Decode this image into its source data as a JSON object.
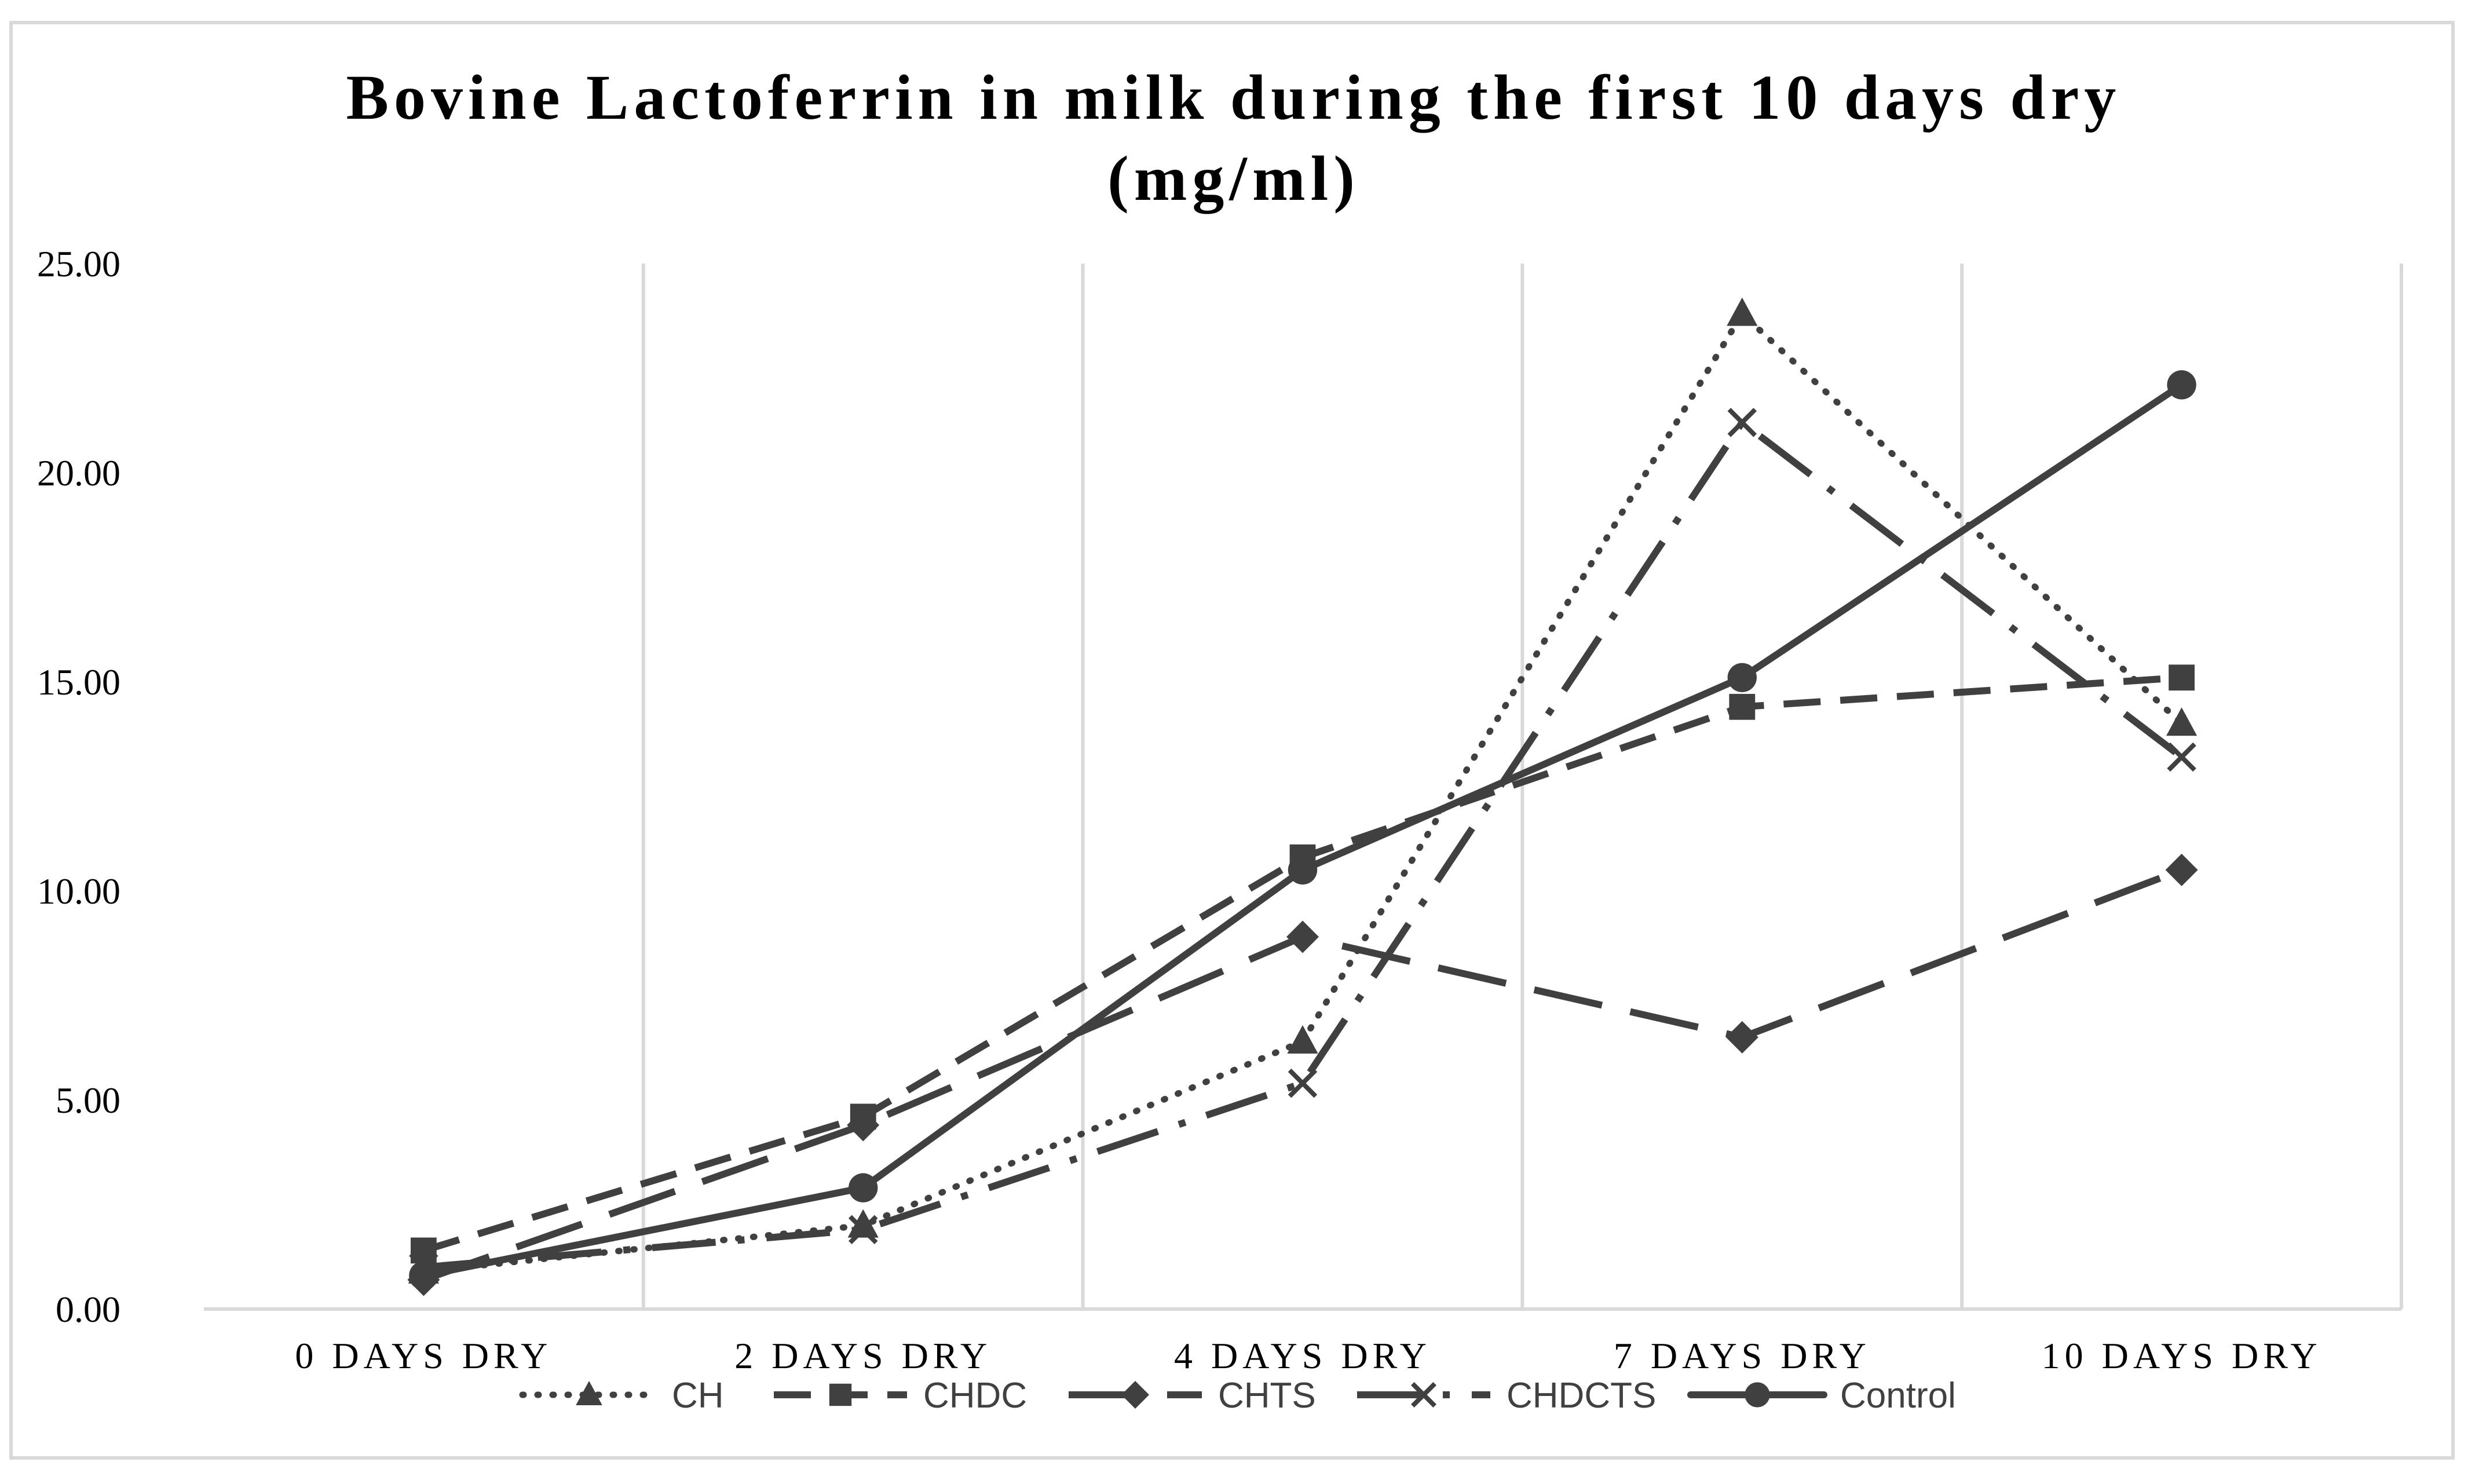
{
  "chart_data": {
    "type": "line",
    "title_lines": [
      "Bovine Lactoferrin in milk during the first 10 days dry",
      "(mg/ml)"
    ],
    "categories": [
      "0 DAYS DRY",
      "2 DAYS DRY",
      "4 DAYS DRY",
      "7 DAYS DRY",
      "10 DAYS DRY"
    ],
    "ylim": [
      0,
      25
    ],
    "yticks": [
      0,
      5,
      10,
      15,
      20,
      25
    ],
    "ytick_labels": [
      "0.00",
      "5.00",
      "10.00",
      "15.00",
      "20.00",
      "25.00"
    ],
    "xlabel": "",
    "ylabel": "",
    "grid": "vertical",
    "legend_position": "bottom",
    "line_color": "#404040",
    "grid_color": "#d9d9d9",
    "series": [
      {
        "name": "CH",
        "marker": "triangle",
        "dash": "dotted",
        "values": [
          0.9,
          2.0,
          6.4,
          23.8,
          14.0
        ]
      },
      {
        "name": "CHDC",
        "marker": "square",
        "dash": "dashed",
        "values": [
          1.4,
          4.6,
          10.8,
          14.4,
          15.1
        ]
      },
      {
        "name": "CHTS",
        "marker": "diamond",
        "dash": "longdash",
        "values": [
          0.7,
          4.4,
          8.9,
          6.5,
          10.5
        ]
      },
      {
        "name": "CHDCTS",
        "marker": "x",
        "dash": "dashdot",
        "values": [
          1.0,
          1.9,
          5.4,
          21.2,
          13.2
        ]
      },
      {
        "name": "Control",
        "marker": "circle",
        "dash": "solid",
        "values": [
          0.8,
          2.9,
          10.5,
          15.1,
          22.1
        ]
      }
    ]
  }
}
